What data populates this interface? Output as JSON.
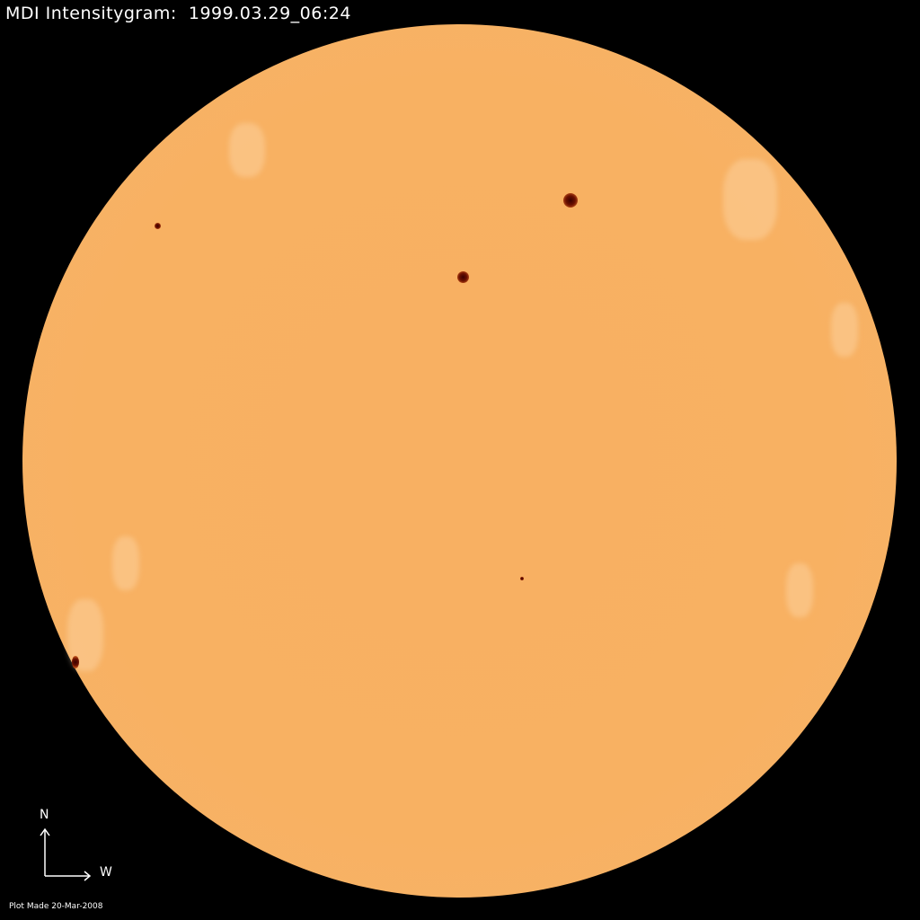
{
  "header": {
    "title": "MDI Intensitygram:  1999.03.29_06:24"
  },
  "compass": {
    "north": "N",
    "west": "W"
  },
  "footer": {
    "plot_made": "Plot Made 20-Mar-2008"
  },
  "colors": {
    "background": "#000000",
    "disk": "#f8b062",
    "sunspot": "#3a0000",
    "text": "#ffffff"
  }
}
